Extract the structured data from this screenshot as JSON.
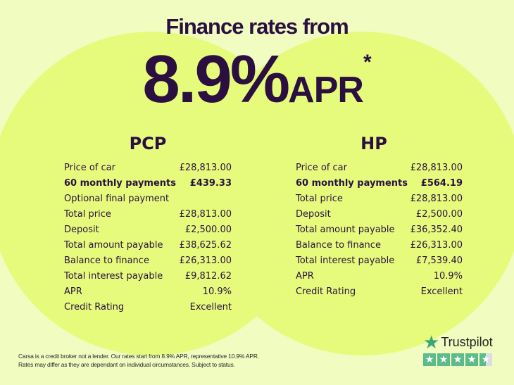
{
  "header": {
    "title": "Finance rates from",
    "rate": "8.9%",
    "apr": "APR",
    "asterisk": "*"
  },
  "pcp": {
    "title": "PCP",
    "rows": [
      {
        "label": "Price of car",
        "value": "£28,813.00",
        "bold": false
      },
      {
        "label": "60 monthly payments",
        "value": "£439.33",
        "bold": true
      },
      {
        "label": "Optional final payment",
        "value": "",
        "bold": false
      },
      {
        "label": "Total price",
        "value": "£28,813.00",
        "bold": false
      },
      {
        "label": "Deposit",
        "value": "£2,500.00",
        "bold": false
      },
      {
        "label": "Total amount payable",
        "value": "£38,625.62",
        "bold": false
      },
      {
        "label": "Balance to finance",
        "value": "£26,313.00",
        "bold": false
      },
      {
        "label": "Total interest payable",
        "value": "£9,812.62",
        "bold": false
      },
      {
        "label": "APR",
        "value": "10.9%",
        "bold": false
      },
      {
        "label": "Credit Rating",
        "value": "Excellent",
        "bold": false
      }
    ]
  },
  "hp": {
    "title": "HP",
    "rows": [
      {
        "label": "Price of car",
        "value": "£28,813.00",
        "bold": false
      },
      {
        "label": "60 monthly payments",
        "value": "£564.19",
        "bold": true
      },
      {
        "label": "Total price",
        "value": "£28,813.00",
        "bold": false
      },
      {
        "label": "Deposit",
        "value": "£2,500.00",
        "bold": false
      },
      {
        "label": "Total amount payable",
        "value": "£36,352.40",
        "bold": false
      },
      {
        "label": "Balance to finance",
        "value": "£26,313.00",
        "bold": false
      },
      {
        "label": "Total interest payable",
        "value": "£7,539.40",
        "bold": false
      },
      {
        "label": "APR",
        "value": "10.9%",
        "bold": false
      },
      {
        "label": "Credit Rating",
        "value": "Excellent",
        "bold": false
      }
    ]
  },
  "disclaimer": {
    "line1": "Carsa is a credit broker not a lender. Our rates start from 8.9% APR, representative 10.9% APR.",
    "line2": "Rates may differ as they are dependant on individual circumstances. Subject to status."
  },
  "trustpilot": {
    "name": "Trustpilot",
    "rating_stars": 4.5,
    "icon": "star-icon",
    "color": "#3aa672"
  },
  "colors": {
    "background": "#f0fcc0",
    "circle": "#e6fb7c",
    "text": "#2a0f40"
  }
}
